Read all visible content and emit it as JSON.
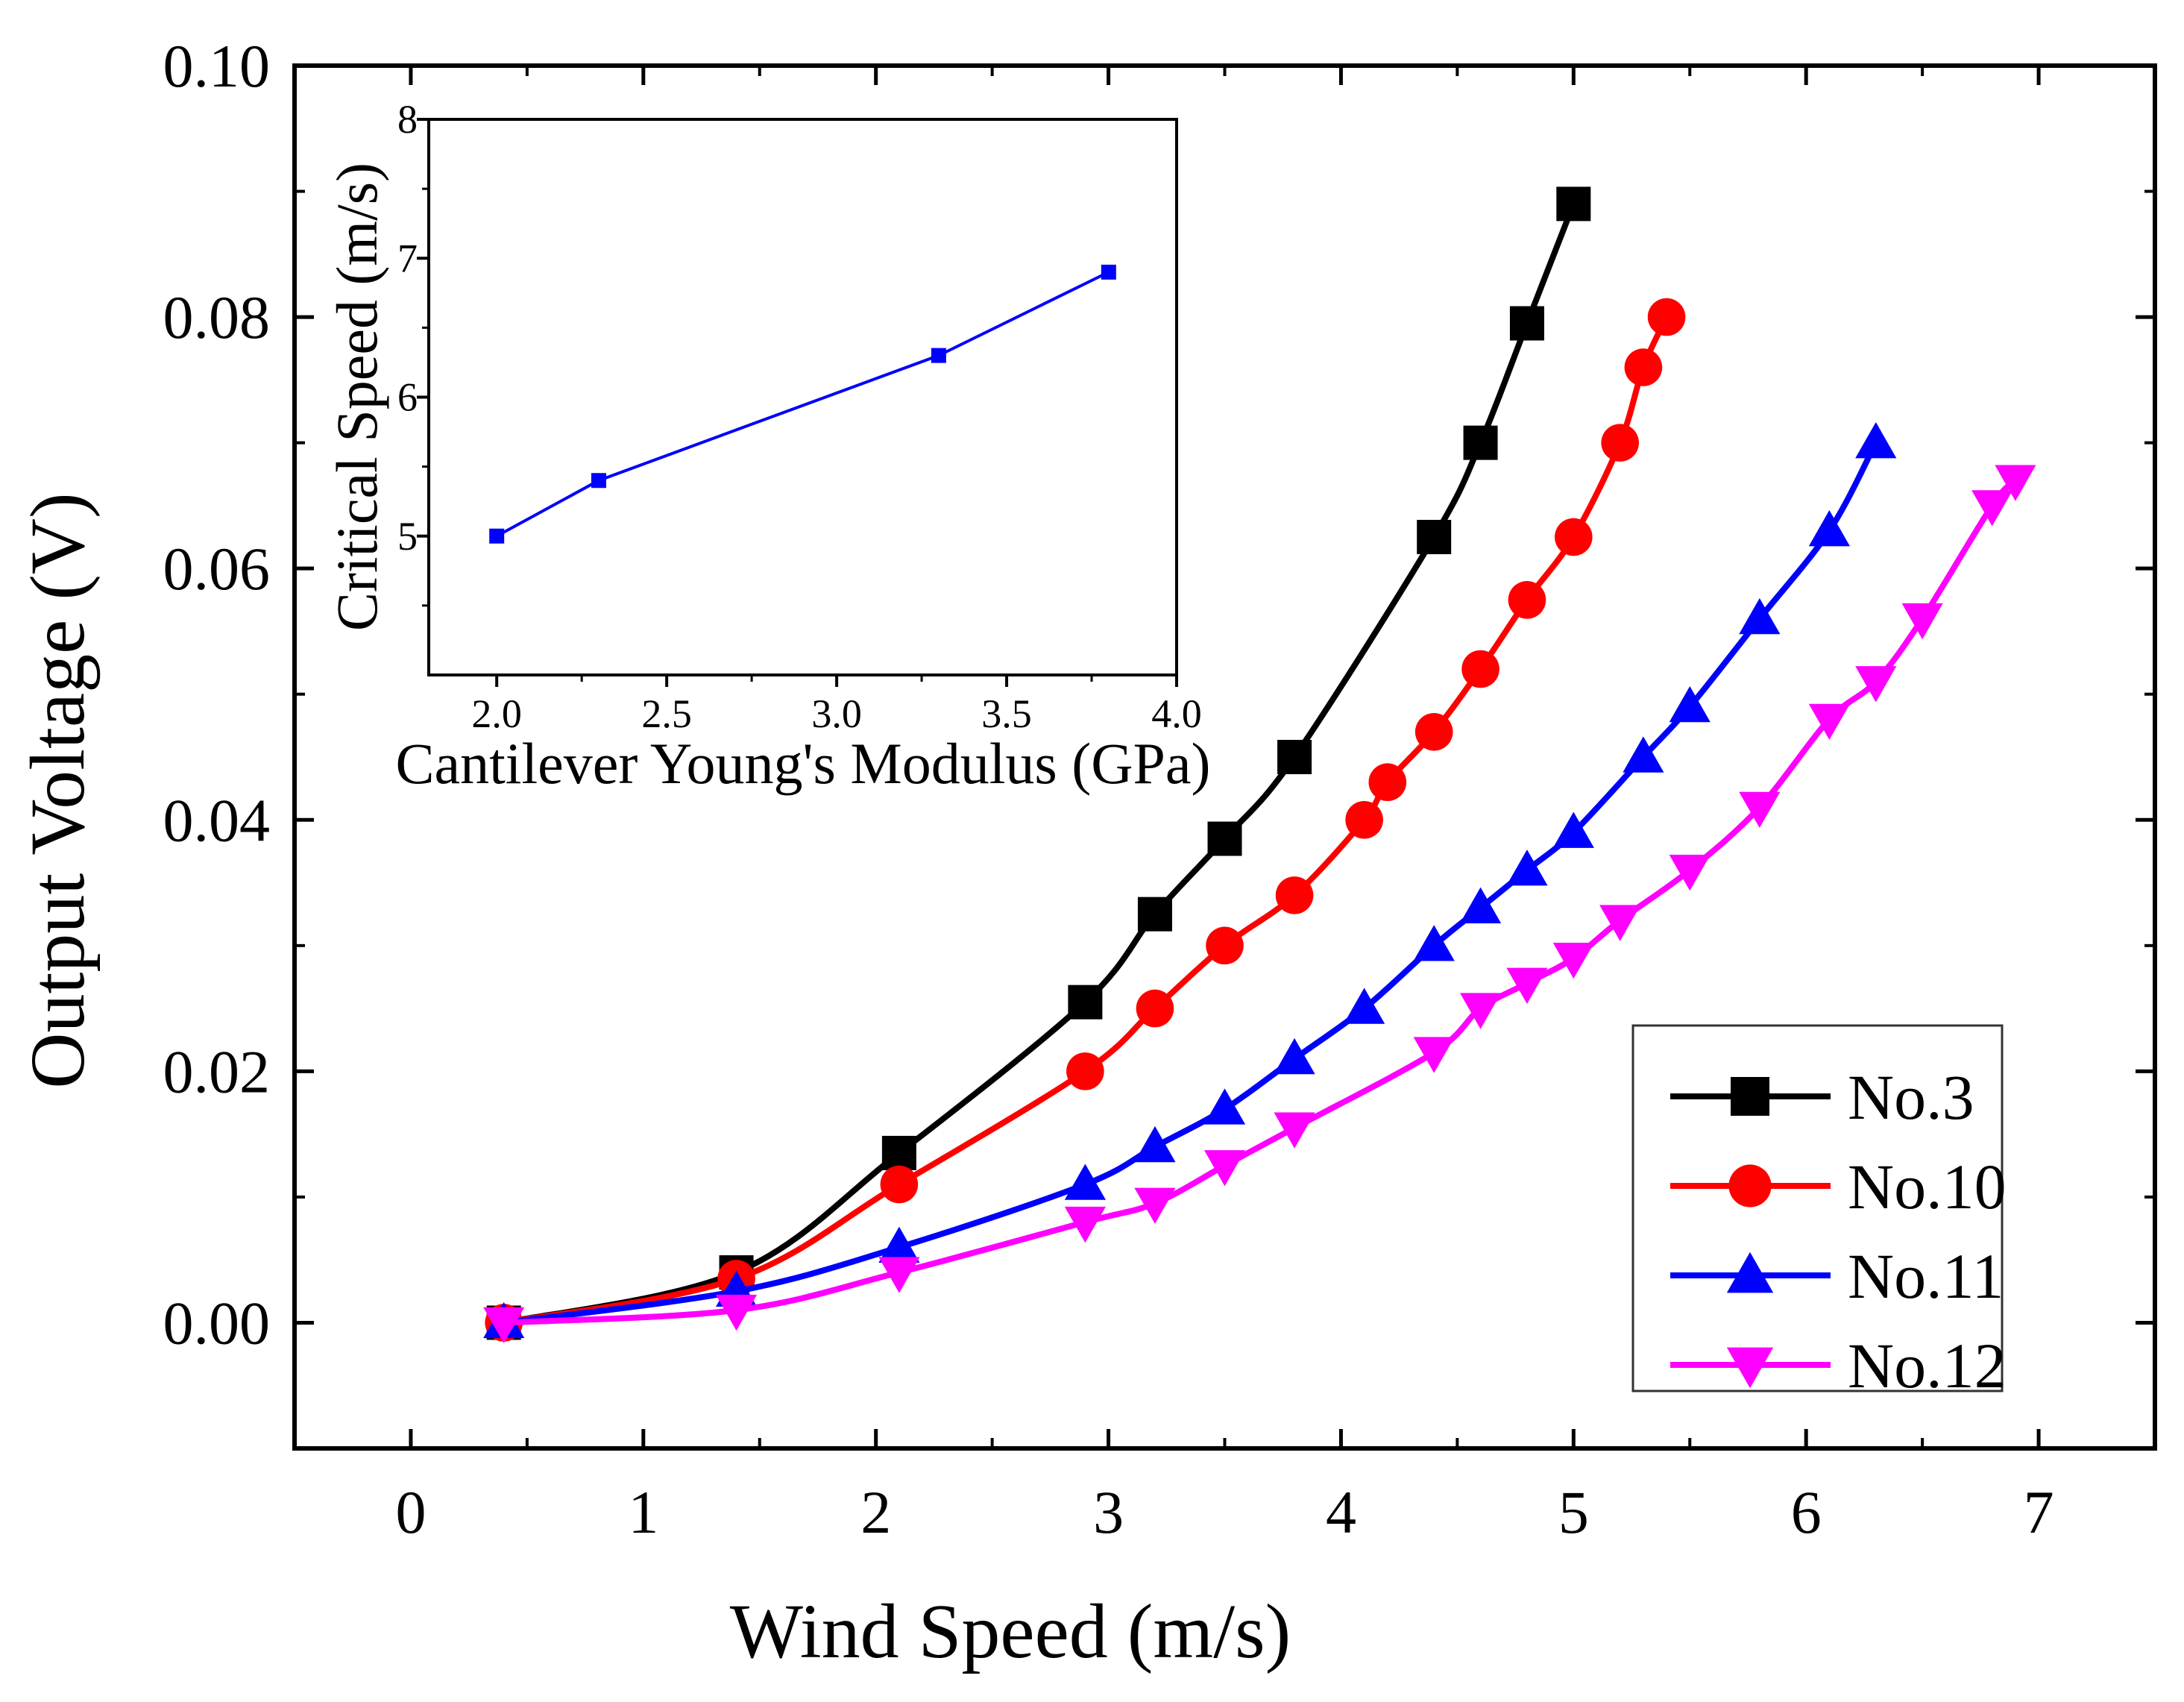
{
  "chart_data": [
    {
      "id": "main",
      "type": "line",
      "xlabel": "Wind Speed (m/s)",
      "ylabel": "Output Voltage (V)",
      "xlim": [
        -0.5,
        7.5
      ],
      "ylim": [
        -0.01,
        0.1
      ],
      "xticks": [
        0,
        1,
        2,
        3,
        4,
        5,
        6,
        7
      ],
      "xtick_labels": [
        "0",
        "1",
        "2",
        "3",
        "4",
        "5",
        "6",
        "7"
      ],
      "yticks": [
        0,
        0.02,
        0.04,
        0.06,
        0.08,
        0.1
      ],
      "ytick_labels": [
        "0.00",
        "0.02",
        "0.04",
        "0.06",
        "0.08",
        "0.10"
      ],
      "legend_position": "bottom-right",
      "series": [
        {
          "name": "No.3",
          "color": "#000000",
          "marker": "square",
          "x": [
            0.4,
            1.4,
            2.1,
            2.9,
            3.2,
            3.5,
            3.8,
            4.4,
            4.6,
            4.8,
            5.0
          ],
          "y": [
            0.0,
            0.004,
            0.0135,
            0.0255,
            0.0325,
            0.0385,
            0.045,
            0.0625,
            0.07,
            0.0795,
            0.089
          ]
        },
        {
          "name": "No.10",
          "color": "#ff0000",
          "marker": "circle",
          "x": [
            0.4,
            1.4,
            2.1,
            2.9,
            3.2,
            3.5,
            3.8,
            4.1,
            4.2,
            4.4,
            4.6,
            4.8,
            5.0,
            5.2,
            5.3,
            5.4
          ],
          "y": [
            0.0,
            0.0035,
            0.011,
            0.02,
            0.025,
            0.03,
            0.034,
            0.04,
            0.043,
            0.047,
            0.052,
            0.0575,
            0.0625,
            0.07,
            0.076,
            0.08
          ]
        },
        {
          "name": "No.11",
          "color": "#0000ff",
          "marker": "triangle-up",
          "x": [
            0.4,
            1.4,
            2.1,
            2.9,
            3.2,
            3.5,
            3.8,
            4.1,
            4.4,
            4.6,
            4.8,
            5.0,
            5.3,
            5.5,
            5.8,
            6.1,
            6.3
          ],
          "y": [
            0.0,
            0.0025,
            0.006,
            0.011,
            0.014,
            0.017,
            0.021,
            0.025,
            0.03,
            0.033,
            0.036,
            0.039,
            0.045,
            0.049,
            0.056,
            0.063,
            0.07
          ]
        },
        {
          "name": "No.12",
          "color": "#ff00ff",
          "marker": "triangle-down",
          "x": [
            0.4,
            1.4,
            2.1,
            2.9,
            3.2,
            3.5,
            3.8,
            4.4,
            4.6,
            4.8,
            5.0,
            5.2,
            5.5,
            5.8,
            6.1,
            6.3,
            6.5,
            6.8,
            6.9
          ],
          "y": [
            0.0,
            0.001,
            0.004,
            0.008,
            0.0095,
            0.0125,
            0.0155,
            0.0215,
            0.025,
            0.027,
            0.029,
            0.032,
            0.036,
            0.041,
            0.048,
            0.051,
            0.056,
            0.065,
            0.067
          ]
        }
      ]
    },
    {
      "id": "inset",
      "type": "line",
      "xlabel": "Cantilever Young's Modulus (GPa)",
      "ylabel": "Critical Speed (m/s)",
      "xlim": [
        1.8,
        4.0
      ],
      "ylim": [
        4.0,
        8.0
      ],
      "xticks": [
        2.0,
        2.5,
        3.0,
        3.5,
        4.0
      ],
      "xtick_labels": [
        "2.0",
        "2.5",
        "3.0",
        "3.5",
        "4.0"
      ],
      "yticks": [
        5,
        6,
        7,
        8
      ],
      "ytick_labels": [
        "5",
        "6",
        "7",
        "8"
      ],
      "series": [
        {
          "name": "Critical Speed",
          "color": "#0000ff",
          "marker": "square",
          "x": [
            2.0,
            2.3,
            3.3,
            3.8
          ],
          "y": [
            5.0,
            5.4,
            6.3,
            6.9
          ]
        }
      ]
    }
  ]
}
